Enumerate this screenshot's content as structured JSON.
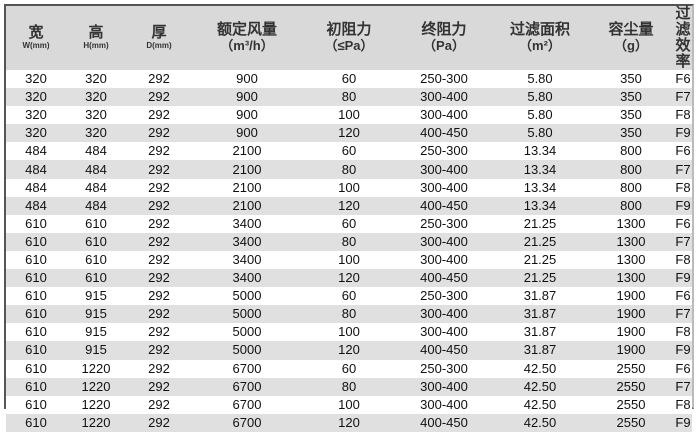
{
  "headers": [
    {
      "label": "宽",
      "unit": "W(mm)"
    },
    {
      "label": "高",
      "unit": "H(mm)"
    },
    {
      "label": "厚",
      "unit": "D(mm)"
    },
    {
      "label": "额定风量",
      "unit": "（m³/h）"
    },
    {
      "label": "初阻力",
      "unit": "（≤Pa）"
    },
    {
      "label": "终阻力",
      "unit": "（Pa）"
    },
    {
      "label": "过滤面积",
      "unit": "（m²）"
    },
    {
      "label": "容尘量",
      "unit": "（g）"
    },
    {
      "label": "过滤效率",
      "unit": ""
    }
  ],
  "rows": [
    [
      "320",
      "320",
      "292",
      "900",
      "60",
      "250-300",
      "5.80",
      "350",
      "F6"
    ],
    [
      "320",
      "320",
      "292",
      "900",
      "80",
      "300-400",
      "5.80",
      "350",
      "F7"
    ],
    [
      "320",
      "320",
      "292",
      "900",
      "100",
      "300-400",
      "5.80",
      "350",
      "F8"
    ],
    [
      "320",
      "320",
      "292",
      "900",
      "120",
      "400-450",
      "5.80",
      "350",
      "F9"
    ],
    [
      "484",
      "484",
      "292",
      "2100",
      "60",
      "250-300",
      "13.34",
      "800",
      "F6"
    ],
    [
      "484",
      "484",
      "292",
      "2100",
      "80",
      "300-400",
      "13.34",
      "800",
      "F7"
    ],
    [
      "484",
      "484",
      "292",
      "2100",
      "100",
      "300-400",
      "13.34",
      "800",
      "F8"
    ],
    [
      "484",
      "484",
      "292",
      "2100",
      "120",
      "400-450",
      "13.34",
      "800",
      "F9"
    ],
    [
      "610",
      "610",
      "292",
      "3400",
      "60",
      "250-300",
      "21.25",
      "1300",
      "F6"
    ],
    [
      "610",
      "610",
      "292",
      "3400",
      "80",
      "300-400",
      "21.25",
      "1300",
      "F7"
    ],
    [
      "610",
      "610",
      "292",
      "3400",
      "100",
      "300-400",
      "21.25",
      "1300",
      "F8"
    ],
    [
      "610",
      "610",
      "292",
      "3400",
      "120",
      "400-450",
      "21.25",
      "1300",
      "F9"
    ],
    [
      "610",
      "915",
      "292",
      "5000",
      "60",
      "250-300",
      "31.87",
      "1900",
      "F6"
    ],
    [
      "610",
      "915",
      "292",
      "5000",
      "80",
      "300-400",
      "31.87",
      "1900",
      "F7"
    ],
    [
      "610",
      "915",
      "292",
      "5000",
      "100",
      "300-400",
      "31.87",
      "1900",
      "F8"
    ],
    [
      "610",
      "915",
      "292",
      "5000",
      "120",
      "400-450",
      "31.87",
      "1900",
      "F9"
    ],
    [
      "610",
      "1220",
      "292",
      "6700",
      "60",
      "250-300",
      "42.50",
      "2550",
      "F6"
    ],
    [
      "610",
      "1220",
      "292",
      "6700",
      "80",
      "300-400",
      "42.50",
      "2550",
      "F7"
    ],
    [
      "610",
      "1220",
      "292",
      "6700",
      "100",
      "300-400",
      "42.50",
      "2550",
      "F8"
    ],
    [
      "610",
      "1220",
      "292",
      "6700",
      "120",
      "400-450",
      "42.50",
      "2550",
      "F9"
    ]
  ]
}
